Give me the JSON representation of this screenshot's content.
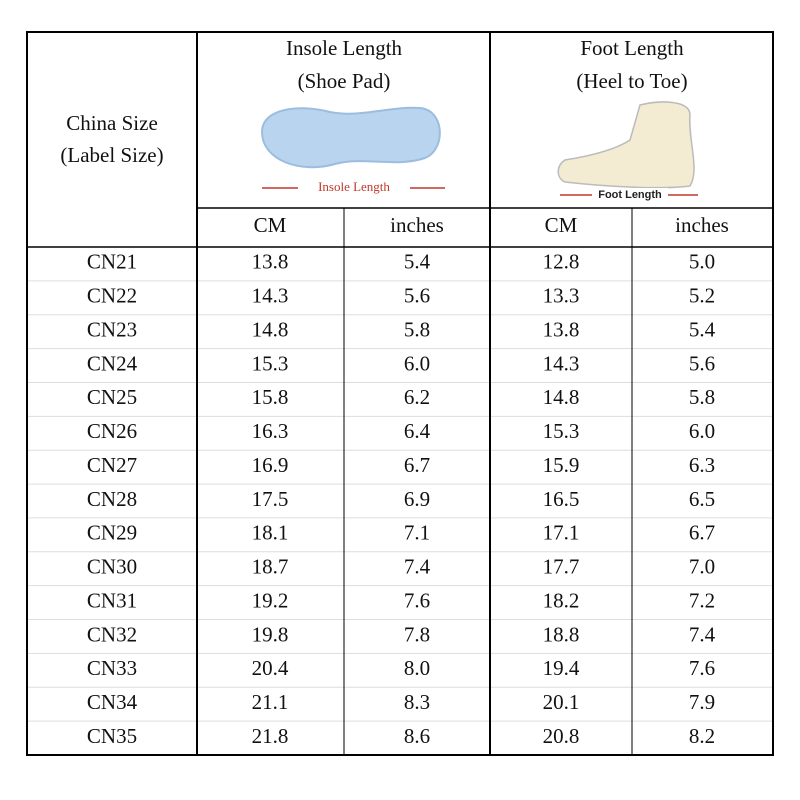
{
  "header": {
    "size_title": [
      "China Size",
      "(Label Size)"
    ],
    "insole": {
      "title": [
        "Insole Length",
        "(Shoe Pad)"
      ],
      "image_label": "Insole Length"
    },
    "foot": {
      "title": [
        "Foot Length",
        "(Heel to Toe)"
      ],
      "image_label": "Foot Length"
    },
    "units": [
      "CM",
      "inches",
      "CM",
      "inches"
    ]
  },
  "table": {
    "rows": [
      [
        "CN21",
        "13.8",
        "5.4",
        "12.8",
        "5.0"
      ],
      [
        "CN22",
        "14.3",
        "5.6",
        "13.3",
        "5.2"
      ],
      [
        "CN23",
        "14.8",
        "5.8",
        "13.8",
        "5.4"
      ],
      [
        "CN24",
        "15.3",
        "6.0",
        "14.3",
        "5.6"
      ],
      [
        "CN25",
        "15.8",
        "6.2",
        "14.8",
        "5.8"
      ],
      [
        "CN26",
        "16.3",
        "6.4",
        "15.3",
        "6.0"
      ],
      [
        "CN27",
        "16.9",
        "6.7",
        "15.9",
        "6.3"
      ],
      [
        "CN28",
        "17.5",
        "6.9",
        "16.5",
        "6.5"
      ],
      [
        "CN29",
        "18.1",
        "7.1",
        "17.1",
        "6.7"
      ],
      [
        "CN30",
        "18.7",
        "7.4",
        "17.7",
        "7.0"
      ],
      [
        "CN31",
        "19.2",
        "7.6",
        "18.2",
        "7.2"
      ],
      [
        "CN32",
        "19.8",
        "7.8",
        "18.8",
        "7.4"
      ],
      [
        "CN33",
        "20.4",
        "8.0",
        "19.4",
        "7.6"
      ],
      [
        "CN34",
        "21.1",
        "8.3",
        "20.1",
        "7.9"
      ],
      [
        "CN35",
        "21.8",
        "8.6",
        "20.8",
        "8.2"
      ]
    ]
  }
}
